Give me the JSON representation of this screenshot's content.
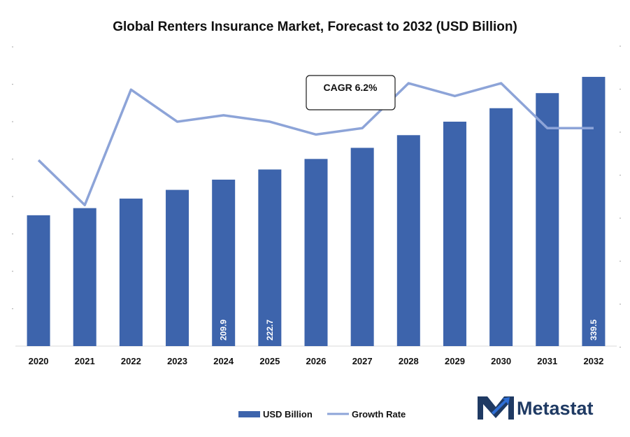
{
  "chart_data": {
    "type": "bar",
    "title": "Global Renters Insurance Market, Forecast to 2032 (USD Billion)",
    "categories": [
      "2020",
      "2021",
      "2022",
      "2023",
      "2024",
      "2025",
      "2026",
      "2027",
      "2028",
      "2029",
      "2030",
      "2031",
      "2032"
    ],
    "series": [
      {
        "name": "USD Billion",
        "type": "bar",
        "values": [
          165.0,
          174.0,
          186.0,
          197.0,
          209.9,
          222.7,
          236.0,
          250.0,
          266.0,
          283.0,
          300.0,
          319.0,
          339.5
        ],
        "labels": [
          "",
          "",
          "",
          "",
          "209.9",
          "222.7",
          "",
          "",
          "",
          "",
          "",
          "",
          "339.5"
        ]
      },
      {
        "name": "Growth Rate",
        "type": "line",
        "values": [
          5.9,
          5.2,
          7.0,
          6.5,
          6.6,
          6.5,
          6.3,
          6.4,
          7.1,
          6.9,
          7.1,
          6.4,
          6.4
        ]
      }
    ],
    "annotations": [
      {
        "text": "CAGR 6.2%"
      }
    ],
    "bar_ylim": [
      0,
      380
    ],
    "line_ylim": [
      3,
      7.7
    ],
    "legend_position": "bottom",
    "colors": {
      "bar": "#3d64ac",
      "line": "#8da4d8",
      "text": "#111111"
    }
  },
  "branding": {
    "logo_text": "Metastat",
    "logo_color": "#1f3a63",
    "logo_accent": "#2f6fd6"
  }
}
